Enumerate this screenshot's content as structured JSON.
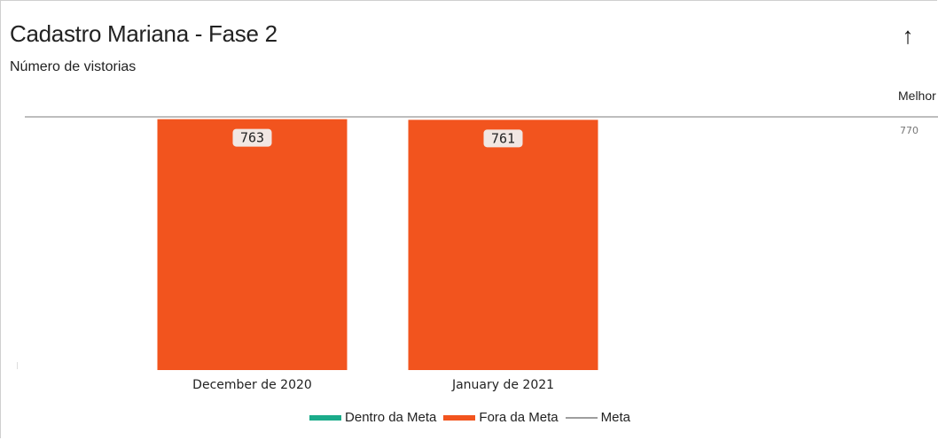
{
  "header": {
    "title": "Cadastro Mariana - Fase 2",
    "subtitle": "Número de vistorias",
    "direction_icon": "arrow-up-icon",
    "direction_label": "Melhor"
  },
  "chart_data": {
    "type": "bar",
    "title": "Cadastro Mariana - Fase 2",
    "subtitle": "Número de vistorias",
    "categories": [
      "December de 2020",
      "January de 2021"
    ],
    "series": [
      {
        "name": "Dentro da Meta",
        "color": "#1aab8a",
        "values": [
          0,
          0
        ]
      },
      {
        "name": "Fora da Meta",
        "color": "#f2541e",
        "values": [
          763,
          761
        ]
      }
    ],
    "meta": {
      "name": "Meta",
      "value": 770,
      "label": "770",
      "color": "#bdbdbd"
    },
    "data_labels": [
      "763",
      "761"
    ],
    "ylim": [
      0,
      770
    ],
    "grid": false,
    "legend": "bottom-center"
  },
  "legend": {
    "items": [
      {
        "label": "Dentro da Meta",
        "color": "#1aab8a",
        "kind": "swatch"
      },
      {
        "label": "Fora da Meta",
        "color": "#f2541e",
        "kind": "swatch"
      },
      {
        "label": "Meta",
        "color": "#9e9e9e",
        "kind": "line"
      }
    ]
  }
}
